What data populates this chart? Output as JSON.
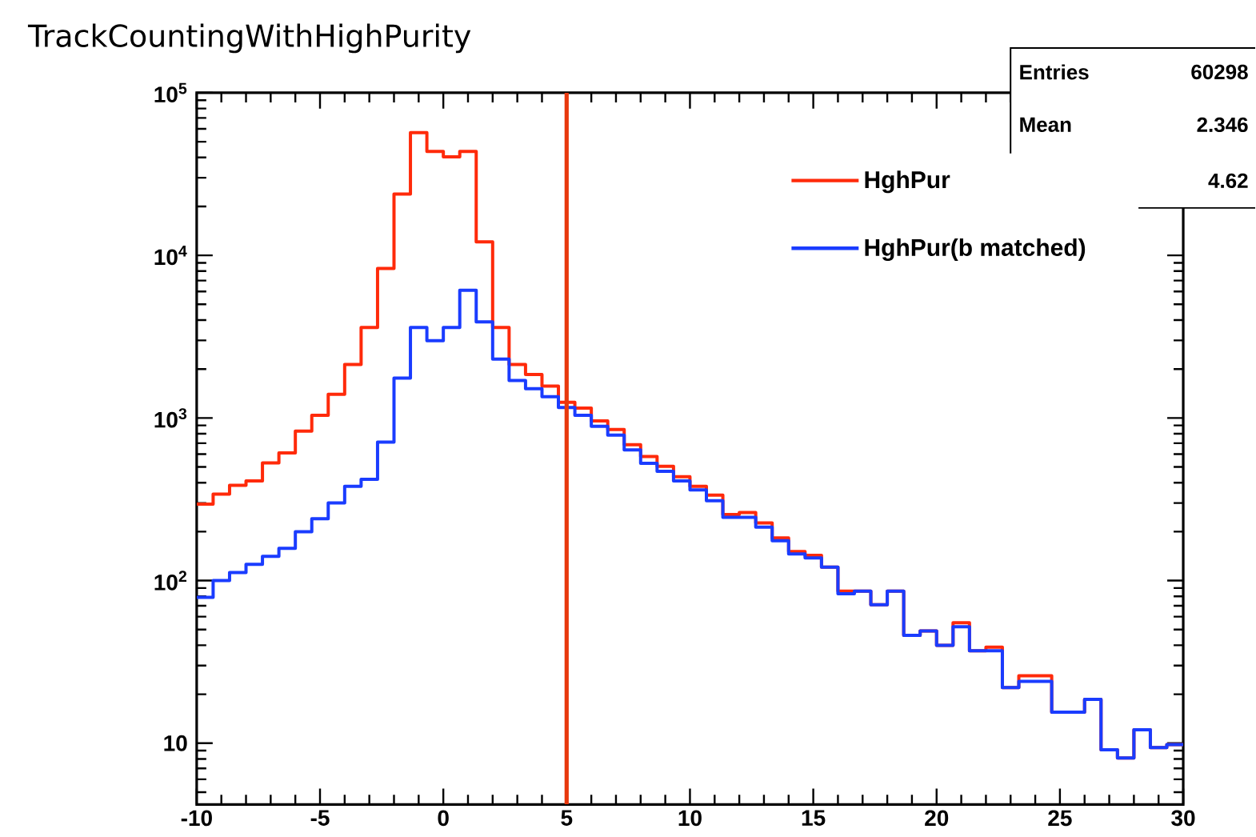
{
  "chart_data": {
    "type": "histogram",
    "title": "TrackCountingWithHighPurity",
    "bins": [
      -10,
      -9.3333,
      -8.6667,
      -8,
      -7.3333,
      -6.6667,
      -6,
      -5.3333,
      -4.6667,
      -4,
      -3.3333,
      -2.6667,
      -2,
      -1.3333,
      -0.6667,
      0,
      0.6667,
      1.3333,
      2,
      2.6667,
      3.3333,
      4,
      4.6667,
      5.3333,
      6,
      6.6667,
      7.3333,
      8,
      8.6667,
      9.3333,
      10,
      10.6667,
      11.3333,
      12,
      12.6667,
      13.3333,
      14,
      14.6667,
      15.3333,
      16,
      16.6667,
      17.3333,
      18,
      18.6667,
      19.3333,
      20,
      20.6667,
      21.3333,
      22,
      22.6667,
      23.3333,
      24,
      24.6667,
      25.3333,
      26,
      26.6667,
      27.3333,
      28,
      28.6667,
      29.3333,
      30
    ],
    "series": [
      {
        "name": "HghPur",
        "color": "#ff2a0a",
        "values": [
          295,
          340,
          385,
          410,
          530,
          610,
          830,
          1040,
          1400,
          2130,
          3600,
          8300,
          23800,
          56800,
          43600,
          40400,
          43600,
          12100,
          3600,
          2130,
          1850,
          1570,
          1250,
          1150,
          960,
          850,
          685,
          580,
          505,
          435,
          380,
          335,
          255,
          262,
          226,
          183,
          151,
          143,
          121,
          86,
          86,
          71,
          86,
          46,
          49,
          40,
          55,
          37,
          39,
          22,
          26,
          26,
          15.5,
          15.5,
          18.6,
          9.1,
          8.1,
          12.1,
          9.4,
          9.8
        ]
      },
      {
        "name": "HghPur(b matched)",
        "color": "#1a3cff",
        "values": [
          79,
          100,
          112,
          126,
          141,
          158,
          200,
          240,
          300,
          380,
          420,
          710,
          1760,
          3600,
          2990,
          3600,
          6100,
          3900,
          2300,
          1700,
          1515,
          1350,
          1160,
          1040,
          890,
          785,
          636,
          526,
          470,
          410,
          361,
          310,
          245,
          245,
          213,
          176,
          146,
          138,
          121,
          83,
          86,
          71,
          86,
          46,
          49,
          40,
          52,
          37,
          37,
          22,
          24,
          24,
          15.5,
          15.5,
          18.6,
          9.1,
          8.1,
          12.1,
          9.4,
          9.8
        ]
      }
    ],
    "xlim": [
      -10,
      30
    ],
    "xticks": [
      -10,
      -5,
      0,
      5,
      10,
      15,
      20,
      25,
      30
    ],
    "ylim": [
      4.2,
      100000
    ],
    "log": "y",
    "yticks": [
      10,
      {
        "value": 100,
        "label": "10$^{2}$"
      },
      {
        "value": 1000,
        "label": "10$^{3}$"
      },
      {
        "value": 10000,
        "label": "10$^{4}$"
      },
      {
        "value": 100000,
        "label": "10$^{5}$"
      }
    ],
    "ref_lines": [
      {
        "axis": "x",
        "value": 5,
        "color": "#e8380d"
      }
    ],
    "legend": "top right",
    "annotations": [
      "Entries",
      "60298",
      "Mean",
      "2.346",
      "4.62"
    ]
  }
}
